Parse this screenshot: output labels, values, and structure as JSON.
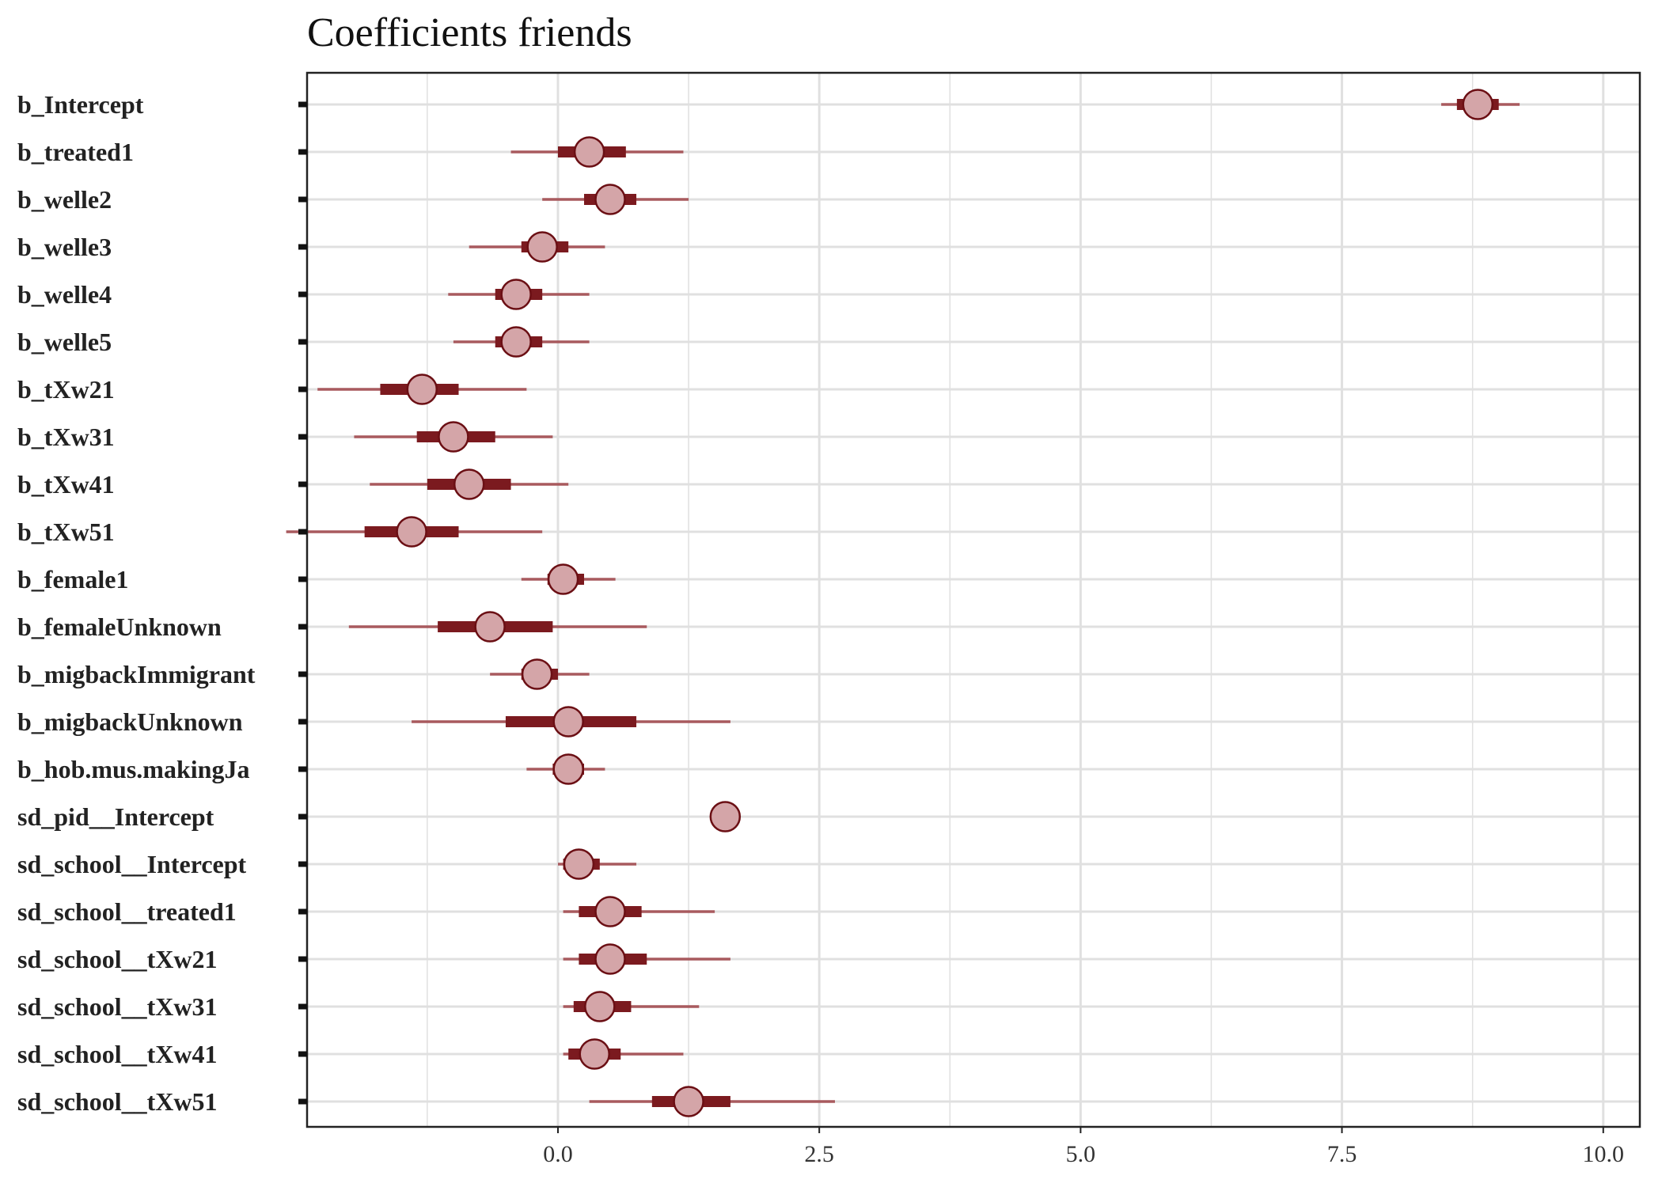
{
  "chart_data": {
    "type": "interval",
    "title": "Coefficients friends",
    "xlim": [
      -2.4,
      10.35
    ],
    "xticks": [
      "0.0",
      "2.5",
      "5.0",
      "7.5",
      "10.0"
    ],
    "xtick_values": [
      0,
      2.5,
      5,
      7.5,
      10
    ],
    "grid": true,
    "colors": {
      "point_fill": "#d4a5a8",
      "point_stroke": "#6b0f14",
      "inner_interval": "#7b1a1f",
      "outer_interval": "#a85a5e",
      "grid": "#e0e0e0"
    },
    "parameters": [
      {
        "label": "b_Intercept",
        "estimate": 8.8,
        "inner": [
          8.6,
          9.0
        ],
        "outer": [
          8.45,
          9.2
        ]
      },
      {
        "label": "b_treated1",
        "estimate": 0.3,
        "inner": [
          0.0,
          0.65
        ],
        "outer": [
          -0.45,
          1.2
        ]
      },
      {
        "label": "b_welle2",
        "estimate": 0.5,
        "inner": [
          0.25,
          0.75
        ],
        "outer": [
          -0.15,
          1.25
        ]
      },
      {
        "label": "b_welle3",
        "estimate": -0.15,
        "inner": [
          -0.35,
          0.1
        ],
        "outer": [
          -0.85,
          0.45
        ]
      },
      {
        "label": "b_welle4",
        "estimate": -0.4,
        "inner": [
          -0.6,
          -0.15
        ],
        "outer": [
          -1.05,
          0.3
        ]
      },
      {
        "label": "b_welle5",
        "estimate": -0.4,
        "inner": [
          -0.6,
          -0.15
        ],
        "outer": [
          -1.0,
          0.3
        ]
      },
      {
        "label": "b_tXw21",
        "estimate": -1.3,
        "inner": [
          -1.7,
          -0.95
        ],
        "outer": [
          -2.3,
          -0.3
        ]
      },
      {
        "label": "b_tXw31",
        "estimate": -1.0,
        "inner": [
          -1.35,
          -0.6
        ],
        "outer": [
          -1.95,
          -0.05
        ]
      },
      {
        "label": "b_tXw41",
        "estimate": -0.85,
        "inner": [
          -1.25,
          -0.45
        ],
        "outer": [
          -1.8,
          0.1
        ]
      },
      {
        "label": "b_tXw51",
        "estimate": -1.4,
        "inner": [
          -1.85,
          -0.95
        ],
        "outer": [
          -2.6,
          -0.15
        ]
      },
      {
        "label": "b_female1",
        "estimate": 0.05,
        "inner": [
          -0.1,
          0.25
        ],
        "outer": [
          -0.35,
          0.55
        ]
      },
      {
        "label": "b_femaleUnknown",
        "estimate": -0.65,
        "inner": [
          -1.15,
          -0.05
        ],
        "outer": [
          -2.0,
          0.85
        ]
      },
      {
        "label": "b_migbackImmigrant",
        "estimate": -0.2,
        "inner": [
          -0.35,
          0.0
        ],
        "outer": [
          -0.65,
          0.3
        ]
      },
      {
        "label": "b_migbackUnknown",
        "estimate": 0.1,
        "inner": [
          -0.5,
          0.75
        ],
        "outer": [
          -1.4,
          1.65
        ]
      },
      {
        "label": "b_hob.mus.makingJa",
        "estimate": 0.1,
        "inner": [
          -0.05,
          0.25
        ],
        "outer": [
          -0.3,
          0.45
        ]
      },
      {
        "label": "sd_pid__Intercept",
        "estimate": 1.6,
        "inner": [
          1.55,
          1.65
        ],
        "outer": [
          1.5,
          1.7
        ]
      },
      {
        "label": "sd_school__Intercept",
        "estimate": 0.2,
        "inner": [
          0.05,
          0.4
        ],
        "outer": [
          0.0,
          0.75
        ]
      },
      {
        "label": "sd_school__treated1",
        "estimate": 0.5,
        "inner": [
          0.2,
          0.8
        ],
        "outer": [
          0.05,
          1.5
        ]
      },
      {
        "label": "sd_school__tXw21",
        "estimate": 0.5,
        "inner": [
          0.2,
          0.85
        ],
        "outer": [
          0.05,
          1.65
        ]
      },
      {
        "label": "sd_school__tXw31",
        "estimate": 0.4,
        "inner": [
          0.15,
          0.7
        ],
        "outer": [
          0.05,
          1.35
        ]
      },
      {
        "label": "sd_school__tXw41",
        "estimate": 0.35,
        "inner": [
          0.1,
          0.6
        ],
        "outer": [
          0.05,
          1.2
        ]
      },
      {
        "label": "sd_school__tXw51",
        "estimate": 1.25,
        "inner": [
          0.9,
          1.65
        ],
        "outer": [
          0.3,
          2.65
        ]
      }
    ]
  }
}
